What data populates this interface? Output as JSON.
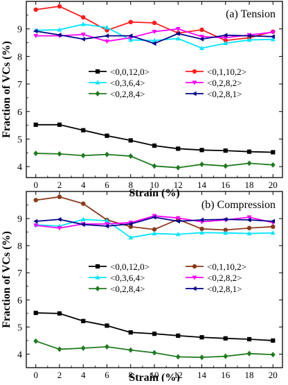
{
  "colors": {
    "<0,0,12,0>": "#000000",
    "<0,1,10,2>_tension": "#ff1a1a",
    "<0,1,10,2>_compression": "#8b3a1a",
    "<0,3,6,4>": "#00e5ff",
    "<0,2,8,2>": "#ff00ff",
    "<0,2,8,4>": "#1f7a1f",
    "<0,2,8,1>": "#00008b"
  },
  "chart_data": [
    {
      "type": "line",
      "title": "(a) Tension",
      "xlabel": "Strain (%)",
      "ylabel": "Fraction of VCs (%)",
      "x": [
        0,
        2,
        4,
        6,
        8,
        10,
        12,
        14,
        16,
        18,
        20
      ],
      "xticks": [
        0,
        2,
        4,
        6,
        8,
        10,
        12,
        14,
        16,
        18,
        20
      ],
      "yticks": [
        4,
        5,
        6,
        7,
        8,
        9
      ],
      "xlim": [
        -0.8,
        20.8
      ],
      "ylim": [
        3.6,
        10
      ],
      "legend_position": "middle",
      "series": [
        {
          "name": "<0,0,12,0>",
          "marker": "square",
          "color_key": "<0,0,12,0>",
          "values": [
            5.52,
            5.52,
            5.32,
            5.12,
            4.95,
            4.76,
            4.65,
            4.6,
            4.58,
            4.54,
            4.52
          ]
        },
        {
          "name": "<0,1,10,2>",
          "marker": "circle",
          "color_key": "<0,1,10,2>_tension",
          "values": [
            9.7,
            9.82,
            9.42,
            8.95,
            9.25,
            9.22,
            8.85,
            8.97,
            8.58,
            8.68,
            8.9
          ]
        },
        {
          "name": "<0,3,6,4>",
          "marker": "triangle-up",
          "color_key": "<0,3,6,4>",
          "values": [
            8.95,
            8.97,
            9.17,
            9.05,
            8.6,
            8.58,
            8.65,
            8.3,
            8.48,
            8.6,
            8.62
          ]
        },
        {
          "name": "<0,2,8,2>",
          "marker": "triangle-down",
          "color_key": "<0,2,8,2>",
          "values": [
            8.75,
            8.75,
            8.8,
            8.55,
            8.68,
            8.9,
            9.0,
            8.72,
            8.68,
            8.78,
            8.88
          ]
        },
        {
          "name": "<0,2,8,4>",
          "marker": "diamond",
          "color_key": "<0,2,8,4>",
          "values": [
            4.48,
            4.46,
            4.4,
            4.44,
            4.38,
            4.02,
            3.96,
            4.08,
            4.02,
            4.12,
            4.06
          ]
        },
        {
          "name": "<0,2,8,1>",
          "marker": "triangle-left",
          "color_key": "<0,2,8,1>",
          "values": [
            8.92,
            8.78,
            8.63,
            8.75,
            8.75,
            8.47,
            8.83,
            8.63,
            8.77,
            8.75,
            8.72
          ]
        }
      ]
    },
    {
      "type": "line",
      "title": "(b) Compression",
      "xlabel": "Strain (%)",
      "ylabel": "Fraction of VCs (%)",
      "x": [
        0,
        2,
        4,
        6,
        8,
        10,
        12,
        14,
        16,
        18,
        20
      ],
      "xticks": [
        0,
        2,
        4,
        6,
        8,
        10,
        12,
        14,
        16,
        18,
        20
      ],
      "yticks": [
        4,
        5,
        6,
        7,
        8,
        9
      ],
      "xlim": [
        -0.8,
        20.8
      ],
      "ylim": [
        3.5,
        10
      ],
      "legend_position": "middle",
      "series": [
        {
          "name": "<0,0,12,0>",
          "marker": "square",
          "color_key": "<0,0,12,0>",
          "values": [
            5.52,
            5.5,
            5.22,
            5.05,
            4.8,
            4.75,
            4.68,
            4.62,
            4.58,
            4.55,
            4.5
          ]
        },
        {
          "name": "<0,1,10,2>",
          "marker": "circle",
          "color_key": "<0,1,10,2>_compression",
          "values": [
            9.68,
            9.8,
            9.55,
            8.95,
            8.7,
            8.6,
            8.97,
            8.62,
            8.58,
            8.65,
            8.7
          ]
        },
        {
          "name": "<0,3,6,4>",
          "marker": "triangle-up",
          "color_key": "<0,3,6,4>",
          "values": [
            8.77,
            8.72,
            8.97,
            8.92,
            8.3,
            8.45,
            8.42,
            8.48,
            8.47,
            8.45,
            8.47
          ]
        },
        {
          "name": "<0,2,8,2>",
          "marker": "triangle-down",
          "color_key": "<0,2,8,2>",
          "values": [
            8.75,
            8.65,
            8.8,
            8.8,
            8.85,
            9.1,
            9.02,
            8.88,
            8.95,
            9.05,
            8.85
          ]
        },
        {
          "name": "<0,2,8,4>",
          "marker": "diamond",
          "color_key": "<0,2,8,4>",
          "values": [
            4.48,
            4.18,
            4.22,
            4.27,
            4.15,
            4.05,
            3.9,
            3.88,
            3.92,
            4.02,
            3.98
          ]
        },
        {
          "name": "<0,2,8,1>",
          "marker": "triangle-left",
          "color_key": "<0,2,8,1>",
          "values": [
            8.9,
            8.97,
            8.78,
            8.72,
            8.8,
            9.05,
            8.9,
            8.95,
            8.97,
            8.95,
            8.9
          ]
        }
      ]
    }
  ]
}
